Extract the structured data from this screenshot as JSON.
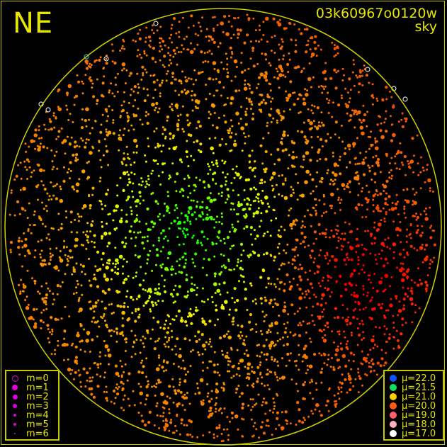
{
  "header": {
    "direction": "NE",
    "frame_id": "03k60967o0120w",
    "mode": "sky"
  },
  "chart_data": {
    "type": "scatter",
    "title": "",
    "horizon_circle": true,
    "grid": false,
    "magnitude_legend": {
      "position": "bottom-left",
      "entries": [
        {
          "label": "m=0",
          "style": "ring"
        },
        {
          "label": "m=1"
        },
        {
          "label": "m=2"
        },
        {
          "label": "m=3"
        },
        {
          "label": "m=4"
        },
        {
          "label": "m=5"
        },
        {
          "label": "m=6"
        }
      ],
      "color": "#e000e0"
    },
    "brightness_legend": {
      "position": "bottom-right",
      "entries": [
        {
          "label": "μ=22.0",
          "color": "#1050ff"
        },
        {
          "label": "μ=21.5",
          "color": "#10e060"
        },
        {
          "label": "μ=21.0",
          "color": "#ffd000"
        },
        {
          "label": "μ=20.0",
          "color": "#ff5a10"
        },
        {
          "label": "μ=19.0",
          "color": "#ff6070"
        },
        {
          "label": "μ=18.0",
          "color": "#ffb0c0"
        },
        {
          "label": "μ=17.0",
          "color": "#ffffff"
        }
      ]
    },
    "sky_brightness_pattern": {
      "darkest_region": "center-left",
      "brightest_region": "right"
    }
  },
  "colors": {
    "accent": "#e6e600",
    "frame": "#c8c800"
  }
}
